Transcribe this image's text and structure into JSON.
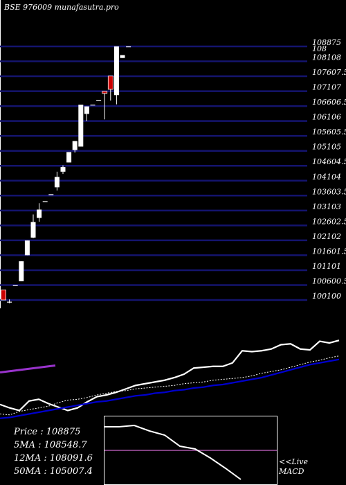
{
  "title": "BSE 976009 munafasutra.pro",
  "colors": {
    "background": "#000000",
    "grid": "#14146e",
    "up": "#ffffff",
    "down": "#cc0000",
    "ma_short": "#ffffff",
    "ma_long": "#0000cc",
    "ma_mid": "#9933cc",
    "macd_zero": "#cc66cc"
  },
  "chart_data": {
    "type": "candlestick",
    "price_axis": {
      "ticks": [
        "108875",
        "108108",
        "107607.5",
        "107107",
        "106606.5",
        "106106",
        "105605.5",
        "105105",
        "104604.5",
        "104104",
        "103603.5",
        "103103",
        "102602.5",
        "102102",
        "101601.5",
        "101101",
        "100600.5",
        "100100"
      ],
      "overlap_label": "108",
      "min": 100100,
      "max": 108875
    },
    "candles": [
      {
        "o": 100450,
        "h": 100450,
        "l": 100100,
        "c": 100100
      },
      {
        "o": 100020,
        "h": 100120,
        "l": 99990,
        "c": 100040
      },
      {
        "o": 100610,
        "h": 100610,
        "l": 100610,
        "c": 100610
      },
      {
        "o": 100750,
        "h": 101440,
        "l": 100750,
        "c": 101440
      },
      {
        "o": 101650,
        "h": 102160,
        "l": 101650,
        "c": 102160
      },
      {
        "o": 102260,
        "h": 103060,
        "l": 102240,
        "c": 102800
      },
      {
        "o": 102940,
        "h": 103450,
        "l": 102810,
        "c": 103230
      },
      {
        "o": 103520,
        "h": 103520,
        "l": 103520,
        "c": 103520
      },
      {
        "o": 103760,
        "h": 103760,
        "l": 103760,
        "c": 103760
      },
      {
        "o": 104000,
        "h": 104540,
        "l": 103890,
        "c": 104360
      },
      {
        "o": 104540,
        "h": 104760,
        "l": 104460,
        "c": 104700
      },
      {
        "o": 104860,
        "h": 105220,
        "l": 104860,
        "c": 105220
      },
      {
        "o": 105290,
        "h": 105600,
        "l": 105200,
        "c": 105600
      },
      {
        "o": 105410,
        "h": 106860,
        "l": 105410,
        "c": 106860
      },
      {
        "o": 106540,
        "h": 106800,
        "l": 106290,
        "c": 106800
      },
      {
        "o": 106860,
        "h": 106860,
        "l": 106860,
        "c": 106860
      },
      {
        "o": 107010,
        "h": 107010,
        "l": 107010,
        "c": 107010
      },
      {
        "o": 107320,
        "h": 107320,
        "l": 106350,
        "c": 107250
      },
      {
        "o": 107850,
        "h": 107850,
        "l": 107000,
        "c": 107390
      },
      {
        "o": 107190,
        "h": 108875,
        "l": 106870,
        "c": 108875
      },
      {
        "o": 108475,
        "h": 108575,
        "l": 108475,
        "c": 108575
      },
      {
        "o": 108875,
        "h": 108875,
        "l": 108875,
        "c": 108875
      }
    ],
    "ma_series": [
      {
        "values": [
          0.25,
          0.21,
          0.18,
          0.29,
          0.31,
          0.26,
          0.22,
          0.18,
          0.21,
          0.28,
          0.34,
          0.36,
          0.39,
          0.43,
          0.47,
          0.49,
          0.51,
          0.53,
          0.56,
          0.6,
          0.67,
          0.68,
          0.69,
          0.69,
          0.73,
          0.87,
          0.86,
          0.87,
          0.89,
          0.94,
          0.95,
          0.89,
          0.88,
          0.98,
          0.96,
          0.99
        ]
      },
      {
        "values": [
          0.14,
          0.13,
          0.17,
          0.19,
          0.21,
          0.23,
          0.27,
          0.3,
          0.31,
          0.33,
          0.36,
          0.38,
          0.4,
          0.41,
          0.43,
          0.44,
          0.45,
          0.46,
          0.47,
          0.49,
          0.5,
          0.51,
          0.53,
          0.54,
          0.55,
          0.56,
          0.58,
          0.61,
          0.63,
          0.65,
          0.68,
          0.71,
          0.74,
          0.76,
          0.79,
          0.81
        ]
      },
      {
        "values": [
          0.09,
          0.1,
          0.12,
          0.14,
          0.16,
          0.18,
          0.2,
          0.22,
          0.24,
          0.26,
          0.28,
          0.29,
          0.31,
          0.33,
          0.35,
          0.36,
          0.38,
          0.39,
          0.41,
          0.42,
          0.44,
          0.45,
          0.47,
          0.48,
          0.5,
          0.52,
          0.54,
          0.56,
          0.59,
          0.62,
          0.65,
          0.68,
          0.71,
          0.73,
          0.75,
          0.77
        ]
      },
      {
        "values": [
          0.62,
          0.63,
          0.64,
          0.65,
          0.66,
          0.67,
          0.68,
          0.69,
          0.7
        ]
      }
    ],
    "macd": {
      "values": [
        0.84,
        0.84,
        0.86,
        0.78,
        0.72,
        0.56,
        0.52,
        0.39,
        0.24,
        0.08
      ]
    }
  },
  "stats": {
    "price": "Price   : 108875",
    "ma5": "5MA : 108548.7",
    "ma12": "12MA : 108091.6",
    "ma50": "50MA : 105007.4"
  },
  "macd_label": {
    "line1": "<<Live",
    "line2": "MACD"
  }
}
